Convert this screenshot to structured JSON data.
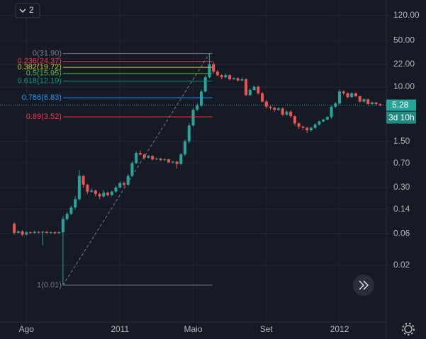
{
  "legend_button": "2",
  "chart_data": {
    "type": "candlestick",
    "log_scale": true,
    "grid": true,
    "colors": {
      "up": "#26a69a",
      "down": "#ef5350"
    },
    "xlim": [
      -3.5,
      91.5
    ],
    "xticks": [
      {
        "value": 3,
        "label": "Ago"
      },
      {
        "value": 26,
        "label": "2011"
      },
      {
        "value": 44,
        "label": "Maio"
      },
      {
        "value": 62,
        "label": "Set"
      },
      {
        "value": 80,
        "label": "2012"
      }
    ],
    "ylim": [
      0.00277,
      206
    ],
    "yticks": [
      {
        "value": 120,
        "label": "120.00"
      },
      {
        "value": 50,
        "label": "50.00"
      },
      {
        "value": 22,
        "label": "22.00"
      },
      {
        "value": 10,
        "label": "10.00"
      },
      {
        "value": 1.5,
        "label": "1.50"
      },
      {
        "value": 0.7,
        "label": "0.70"
      },
      {
        "value": 0.3,
        "label": "0.30"
      },
      0.14,
      0.06,
      0.02
    ],
    "open": [
      0.085,
      0.062,
      0.065,
      0.058,
      0.063,
      0.062,
      0.064,
      0.063,
      0.064,
      0.062,
      0.063,
      0.061,
      0.063,
      0.1,
      0.12,
      0.15,
      0.2,
      0.45,
      0.33,
      0.26,
      0.27,
      0.24,
      0.22,
      0.25,
      0.23,
      0.26,
      0.3,
      0.35,
      0.33,
      0.45,
      0.7,
      1.0,
      0.95,
      0.85,
      0.9,
      0.8,
      0.82,
      0.78,
      0.8,
      0.72,
      0.74,
      0.68,
      0.95,
      1.5,
      2.6,
      4.5,
      5.2,
      8.5,
      14,
      22,
      17,
      15,
      14,
      15,
      13,
      13.5,
      12.5,
      13,
      7.5,
      9,
      10,
      8,
      6,
      5,
      4.8,
      4.5,
      4.7,
      3.8,
      4.2,
      3.6,
      2.8,
      2.5,
      2.4,
      2.2,
      2.4,
      2.7,
      3.0,
      3.2,
      3.5,
      5.0,
      5.6,
      8.5,
      8.0,
      7.0,
      8.0,
      7.2,
      6.0,
      6.5,
      5.5,
      5.8,
      5.5
    ],
    "high": [
      0.09,
      0.068,
      0.068,
      0.066,
      0.065,
      0.067,
      0.066,
      0.066,
      0.066,
      0.065,
      0.065,
      0.065,
      0.11,
      0.13,
      0.16,
      0.22,
      0.55,
      0.46,
      0.34,
      0.29,
      0.28,
      0.25,
      0.27,
      0.26,
      0.27,
      0.32,
      0.37,
      0.37,
      0.48,
      0.75,
      1.05,
      1.1,
      0.98,
      0.93,
      0.92,
      0.85,
      0.84,
      0.83,
      0.82,
      0.76,
      0.76,
      1.0,
      1.6,
      2.8,
      4.8,
      5.6,
      9,
      15,
      31.9,
      24,
      18,
      15.5,
      16,
      15.5,
      14,
      14,
      14,
      13.5,
      9.5,
      10.5,
      10.5,
      8.3,
      6.3,
      5.2,
      5,
      4.9,
      4.9,
      4.4,
      4.4,
      3.7,
      2.9,
      2.6,
      2.5,
      2.5,
      2.8,
      3.1,
      3.3,
      3.6,
      5.2,
      5.9,
      9,
      8.8,
      8.2,
      8.3,
      8.2,
      7.3,
      6.7,
      6.6,
      6,
      5.9,
      5.6
    ],
    "low": [
      0.058,
      0.06,
      0.055,
      0.057,
      0.06,
      0.06,
      0.06,
      0.04,
      0.06,
      0.06,
      0.059,
      0.06,
      0.01,
      0.095,
      0.115,
      0.14,
      0.19,
      0.3,
      0.24,
      0.25,
      0.22,
      0.2,
      0.21,
      0.22,
      0.22,
      0.25,
      0.29,
      0.31,
      0.32,
      0.43,
      0.68,
      0.92,
      0.8,
      0.83,
      0.77,
      0.78,
      0.75,
      0.76,
      0.7,
      0.7,
      0.58,
      0.66,
      0.9,
      1.4,
      2.5,
      4.3,
      5,
      8.2,
      13.5,
      16,
      14.5,
      13,
      13.5,
      12.5,
      12.8,
      12,
      12.2,
      7.2,
      7.3,
      8.8,
      7.6,
      5.8,
      4.7,
      4.5,
      4.2,
      4.3,
      3.6,
      3.7,
      3.4,
      2.6,
      2.3,
      2.2,
      2.0,
      2.1,
      2.3,
      2.6,
      2.9,
      3.1,
      3.3,
      4.8,
      5.4,
      7.6,
      6.7,
      6.8,
      7,
      5.8,
      5.8,
      5.3,
      5.3,
      5.2,
      5.1
    ],
    "close": [
      0.062,
      0.065,
      0.058,
      0.063,
      0.062,
      0.064,
      0.063,
      0.064,
      0.062,
      0.063,
      0.061,
      0.063,
      0.1,
      0.12,
      0.15,
      0.2,
      0.45,
      0.33,
      0.26,
      0.27,
      0.24,
      0.22,
      0.25,
      0.23,
      0.26,
      0.3,
      0.35,
      0.33,
      0.45,
      0.7,
      1.0,
      0.95,
      0.85,
      0.9,
      0.8,
      0.82,
      0.78,
      0.8,
      0.72,
      0.74,
      0.68,
      0.95,
      1.5,
      2.6,
      4.5,
      5.2,
      8.5,
      14,
      22,
      17,
      15,
      14,
      15,
      13,
      13.5,
      12.5,
      13,
      7.5,
      9,
      10,
      8,
      6,
      5,
      4.8,
      4.5,
      4.7,
      3.8,
      4.2,
      3.6,
      2.8,
      2.5,
      2.4,
      2.2,
      2.4,
      2.7,
      3.0,
      3.2,
      3.5,
      5.0,
      5.6,
      8.5,
      8.0,
      7.0,
      8.0,
      7.2,
      6.0,
      6.5,
      5.5,
      5.8,
      5.5,
      5.28
    ],
    "last_price": 5.28,
    "countdown": "3d 10h",
    "fib": {
      "values": [
        31.9,
        24.37,
        19.72,
        15.95,
        12.19,
        6.83,
        3.52,
        0.01
      ],
      "value_labels": [
        "0(31.90)",
        "0.236(24.37)",
        "0.382(19.72)",
        "0.5(15.95)",
        "0.618(12.19)",
        "0.786(6.83)",
        "0.89(3.52)",
        "1(0.01)"
      ],
      "colors": [
        "#787b86",
        "#f23645",
        "#c0ca33",
        "#4caf50",
        "#089981",
        "#2196f3",
        "#f23645",
        "#787b86"
      ]
    }
  }
}
